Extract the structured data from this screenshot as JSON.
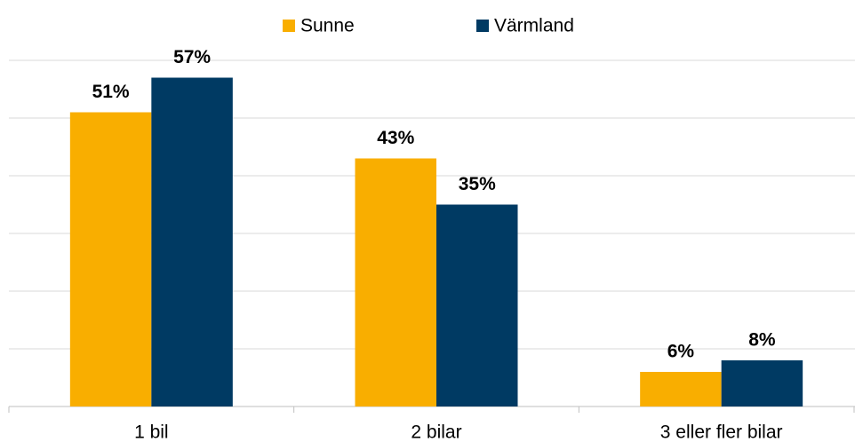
{
  "chart_data": {
    "type": "bar",
    "categories": [
      "1 bil",
      "2 bilar",
      "3 eller fler bilar"
    ],
    "series": [
      {
        "name": "Sunne",
        "color": "#f9ae00",
        "values": [
          51,
          43,
          6
        ],
        "value_labels": [
          "51%",
          "43%",
          "6%"
        ]
      },
      {
        "name": "Värmland",
        "color": "#003a63",
        "values": [
          57,
          35,
          8
        ],
        "value_labels": [
          "57%",
          "35%",
          "8%"
        ]
      }
    ],
    "ylim": [
      0,
      60
    ],
    "yticks": [
      0,
      10,
      20,
      30,
      40,
      50,
      60
    ],
    "grid": true,
    "legend": "top"
  }
}
